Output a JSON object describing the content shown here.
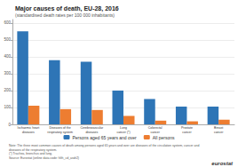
{
  "chart_data": {
    "type": "bar",
    "title": "Major causes of death, EU-28, 2016",
    "subtitle": "(standardised death rates per 100 000 inhabitants)",
    "categories": [
      "Ischaemic heart\ndiseases",
      "Diseases of the\nrespiratory system",
      "Cerebrovascular\ndiseases",
      "Lung\ncancer (*)",
      "Colorectal\ncancer",
      "Prostate\ncancer",
      "Breast\ncancer"
    ],
    "series": [
      {
        "name": "Persons aged 65 years and over",
        "color": "#2E75B6",
        "values": [
          550,
          380,
          370,
          200,
          150,
          105,
          105
        ]
      },
      {
        "name": "All persons",
        "color": "#ED7D31",
        "values": [
          110,
          90,
          85,
          50,
          22,
          18,
          28
        ]
      }
    ],
    "ylim": [
      0,
      620
    ],
    "yticks": [
      0,
      100,
      200,
      300,
      400,
      500,
      600
    ],
    "grid": true,
    "legend": "bottom",
    "annotations": [
      "Note: The three most common causes of death among persons aged 65 years and over are diseases of the circulation system, cancer and\ndiseases of the respiratory system.\n(*) Trachea, bronchus and lung.\nSource: Eurostat (online data code: hlth_cd_asdr2)",
      "eurostat"
    ]
  }
}
